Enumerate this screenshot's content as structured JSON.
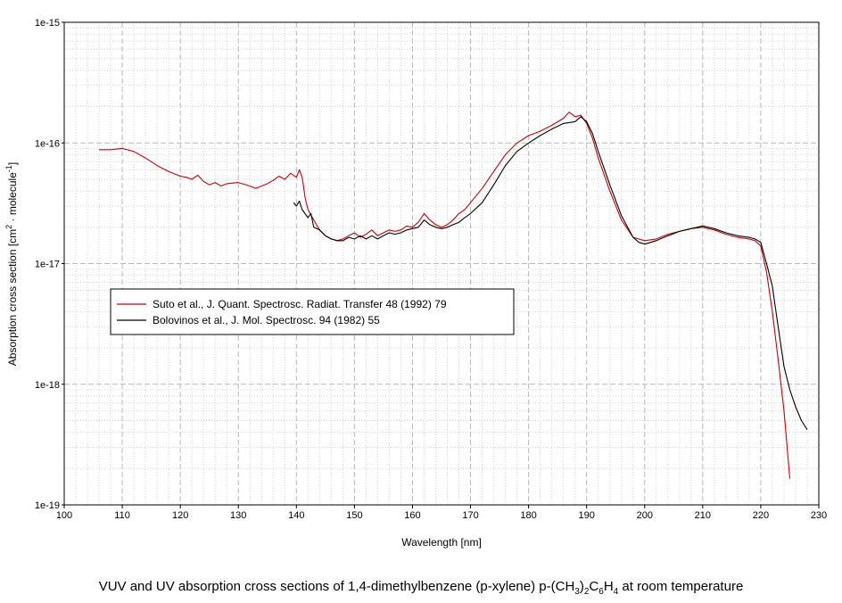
{
  "caption": {
    "pre": "VUV and UV absorption cross sections of 1,4-dimethylbenzene (p-xylene) p-(CH",
    "sub1": "3",
    "mid1": ")",
    "sub2": "2",
    "mid2": "C",
    "sub3": "6",
    "mid3": "H",
    "sub4": "4",
    "post": " at room temperature"
  },
  "chart_data": {
    "type": "line",
    "xlabel": "Wavelength [nm]",
    "ylabel": {
      "pre": "Absorption cross section [cm",
      "sup1": "2",
      "mid": " · molecule",
      "sup2": "-1",
      "post": "]"
    },
    "xlim": [
      100,
      230
    ],
    "ylim": [
      1e-19,
      1e-15
    ],
    "yscale": "log",
    "grid": true,
    "legend_position": "middle-left",
    "x_ticks": [
      "100",
      "110",
      "120",
      "130",
      "140",
      "150",
      "160",
      "170",
      "180",
      "190",
      "200",
      "210",
      "220",
      "230"
    ],
    "y_ticks": [
      "1e-19",
      "1e-18",
      "1e-17",
      "1e-16",
      "1e-15"
    ],
    "series": [
      {
        "name": "Suto et al., J. Quant. Spectrosc. Radiat. Transfer 48 (1992) 79",
        "color": "#cc0000",
        "points": [
          [
            106,
            8.8e-17
          ],
          [
            108,
            8.8e-17
          ],
          [
            110,
            9e-17
          ],
          [
            112,
            8.5e-17
          ],
          [
            114,
            7.5e-17
          ],
          [
            116,
            6.5e-17
          ],
          [
            118,
            5.8e-17
          ],
          [
            120,
            5.3e-17
          ],
          [
            121,
            5.2e-17
          ],
          [
            122,
            5e-17
          ],
          [
            123,
            5.4e-17
          ],
          [
            124,
            4.8e-17
          ],
          [
            125,
            4.5e-17
          ],
          [
            126,
            4.7e-17
          ],
          [
            127,
            4.4e-17
          ],
          [
            128,
            4.6e-17
          ],
          [
            130,
            4.7e-17
          ],
          [
            132,
            4.4e-17
          ],
          [
            133,
            4.2e-17
          ],
          [
            135,
            4.6e-17
          ],
          [
            136,
            4.9e-17
          ],
          [
            137,
            5.3e-17
          ],
          [
            138,
            5e-17
          ],
          [
            139,
            5.6e-17
          ],
          [
            140,
            5.2e-17
          ],
          [
            140.5,
            6e-17
          ],
          [
            141,
            5.2e-17
          ],
          [
            141.5,
            3.5e-17
          ],
          [
            142,
            2.8e-17
          ],
          [
            143,
            2.3e-17
          ],
          [
            144,
            1.9e-17
          ],
          [
            145,
            1.7e-17
          ],
          [
            146,
            1.6e-17
          ],
          [
            147,
            1.55e-17
          ],
          [
            148,
            1.6e-17
          ],
          [
            149,
            1.7e-17
          ],
          [
            150,
            1.8e-17
          ],
          [
            151,
            1.65e-17
          ],
          [
            152,
            1.75e-17
          ],
          [
            153,
            1.9e-17
          ],
          [
            154,
            1.7e-17
          ],
          [
            155,
            1.8e-17
          ],
          [
            156,
            1.9e-17
          ],
          [
            157,
            1.85e-17
          ],
          [
            158,
            1.9e-17
          ],
          [
            159,
            2.05e-17
          ],
          [
            160,
            2e-17
          ],
          [
            161,
            2.2e-17
          ],
          [
            162,
            2.6e-17
          ],
          [
            163,
            2.3e-17
          ],
          [
            164,
            2.1e-17
          ],
          [
            165,
            2e-17
          ],
          [
            166,
            2.1e-17
          ],
          [
            167,
            2.3e-17
          ],
          [
            168,
            2.6e-17
          ],
          [
            169,
            2.8e-17
          ],
          [
            170,
            3.2e-17
          ],
          [
            172,
            4.2e-17
          ],
          [
            174,
            5.8e-17
          ],
          [
            176,
            8e-17
          ],
          [
            178,
            1e-16
          ],
          [
            180,
            1.15e-16
          ],
          [
            182,
            1.25e-16
          ],
          [
            184,
            1.4e-16
          ],
          [
            186,
            1.6e-16
          ],
          [
            187,
            1.8e-16
          ],
          [
            188,
            1.65e-16
          ],
          [
            189,
            1.7e-16
          ],
          [
            190,
            1.45e-16
          ],
          [
            191,
            1.1e-16
          ],
          [
            192,
            7.5e-17
          ],
          [
            194,
            4e-17
          ],
          [
            196,
            2.3e-17
          ],
          [
            198,
            1.65e-17
          ],
          [
            200,
            1.55e-17
          ],
          [
            202,
            1.6e-17
          ],
          [
            204,
            1.75e-17
          ],
          [
            206,
            1.85e-17
          ],
          [
            208,
            1.95e-17
          ],
          [
            210,
            2e-17
          ],
          [
            212,
            1.9e-17
          ],
          [
            214,
            1.75e-17
          ],
          [
            216,
            1.65e-17
          ],
          [
            218,
            1.6e-17
          ],
          [
            219,
            1.55e-17
          ],
          [
            220,
            1.4e-17
          ],
          [
            221,
            8.5e-18
          ],
          [
            222,
            4e-18
          ],
          [
            223,
            1.6e-18
          ],
          [
            224,
            6e-19
          ],
          [
            225,
            1.65e-19
          ]
        ]
      },
      {
        "name": "Bolovinos et al., J. Mol. Spectrosc. 94 (1982) 55",
        "color": "#000000",
        "points": [
          [
            139.5,
            3.2e-17
          ],
          [
            140,
            3e-17
          ],
          [
            140.5,
            3.3e-17
          ],
          [
            141,
            2.8e-17
          ],
          [
            142,
            2.4e-17
          ],
          [
            142.5,
            2.6e-17
          ],
          [
            143,
            2e-17
          ],
          [
            144,
            1.9e-17
          ],
          [
            145,
            1.7e-17
          ],
          [
            146,
            1.6e-17
          ],
          [
            147,
            1.55e-17
          ],
          [
            148,
            1.55e-17
          ],
          [
            149,
            1.65e-17
          ],
          [
            150,
            1.6e-17
          ],
          [
            151,
            1.7e-17
          ],
          [
            152,
            1.6e-17
          ],
          [
            153,
            1.7e-17
          ],
          [
            154,
            1.6e-17
          ],
          [
            155,
            1.7e-17
          ],
          [
            156,
            1.8e-17
          ],
          [
            157,
            1.75e-17
          ],
          [
            158,
            1.8e-17
          ],
          [
            159,
            1.9e-17
          ],
          [
            160,
            1.95e-17
          ],
          [
            161,
            2e-17
          ],
          [
            162,
            2.3e-17
          ],
          [
            163,
            2.1e-17
          ],
          [
            164,
            2e-17
          ],
          [
            165,
            1.95e-17
          ],
          [
            166,
            2e-17
          ],
          [
            167,
            2.1e-17
          ],
          [
            168,
            2.2e-17
          ],
          [
            169,
            2.4e-17
          ],
          [
            170,
            2.6e-17
          ],
          [
            172,
            3.2e-17
          ],
          [
            174,
            4.5e-17
          ],
          [
            176,
            6.5e-17
          ],
          [
            178,
            8.5e-17
          ],
          [
            180,
            1e-16
          ],
          [
            182,
            1.15e-16
          ],
          [
            184,
            1.3e-16
          ],
          [
            186,
            1.45e-16
          ],
          [
            188,
            1.5e-16
          ],
          [
            189,
            1.65e-16
          ],
          [
            190,
            1.5e-16
          ],
          [
            191,
            1.2e-16
          ],
          [
            192,
            8.5e-17
          ],
          [
            194,
            4.5e-17
          ],
          [
            196,
            2.5e-17
          ],
          [
            198,
            1.65e-17
          ],
          [
            199,
            1.5e-17
          ],
          [
            200,
            1.45e-17
          ],
          [
            202,
            1.55e-17
          ],
          [
            204,
            1.7e-17
          ],
          [
            206,
            1.85e-17
          ],
          [
            208,
            1.95e-17
          ],
          [
            210,
            2.05e-17
          ],
          [
            212,
            1.95e-17
          ],
          [
            214,
            1.8e-17
          ],
          [
            216,
            1.7e-17
          ],
          [
            218,
            1.65e-17
          ],
          [
            219,
            1.6e-17
          ],
          [
            220,
            1.5e-17
          ],
          [
            221,
            1e-17
          ],
          [
            222,
            6.5e-18
          ],
          [
            223,
            3e-18
          ],
          [
            224,
            1.4e-18
          ],
          [
            225,
            9e-19
          ],
          [
            226,
            6.5e-19
          ],
          [
            227,
            5e-19
          ],
          [
            228,
            4.2e-19
          ]
        ]
      }
    ]
  }
}
